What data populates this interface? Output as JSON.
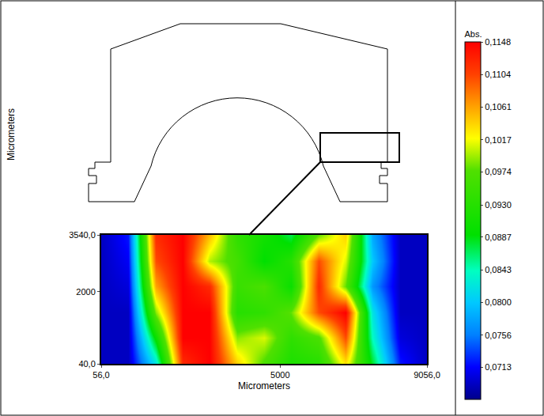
{
  "chart_data": {
    "type": "heatmap",
    "x_label": "Micrometers",
    "y_label": "Micrometers",
    "x": [
      56,
      806,
      1556,
      2306,
      3056,
      3806,
      4556,
      5306,
      6056,
      6806,
      7556,
      8306,
      9056
    ],
    "y": [
      40,
      740,
      1440,
      2140,
      2840,
      3540
    ],
    "z": [
      [
        0.069,
        0.069,
        0.082,
        0.112,
        0.1148,
        0.104,
        0.097,
        0.092,
        0.093,
        0.103,
        0.088,
        0.072,
        0.069
      ],
      [
        0.069,
        0.069,
        0.09,
        0.1148,
        0.1148,
        0.099,
        0.101,
        0.094,
        0.097,
        0.11,
        0.084,
        0.07,
        0.069
      ],
      [
        0.069,
        0.069,
        0.099,
        0.1148,
        0.1148,
        0.093,
        0.094,
        0.098,
        0.11,
        0.1148,
        0.082,
        0.069,
        0.069
      ],
      [
        0.069,
        0.07,
        0.106,
        0.1148,
        0.112,
        0.095,
        0.097,
        0.09,
        0.112,
        0.098,
        0.077,
        0.069,
        0.069
      ],
      [
        0.069,
        0.071,
        0.11,
        0.1148,
        0.1,
        0.096,
        0.089,
        0.093,
        0.11,
        0.101,
        0.08,
        0.069,
        0.069
      ],
      [
        0.069,
        0.072,
        0.112,
        0.1148,
        0.105,
        0.094,
        0.091,
        0.087,
        0.098,
        0.104,
        0.078,
        0.069,
        0.069
      ]
    ],
    "xlim": [
      56,
      9056
    ],
    "ylim": [
      40,
      3540
    ],
    "xticks": [
      {
        "value": 56,
        "label": "56,0"
      },
      5000,
      {
        "value": 9056,
        "label": "9056,0"
      }
    ],
    "yticks": [
      {
        "value": 40,
        "label": "40,0"
      },
      2000,
      {
        "value": 3540,
        "label": "3540,0"
      }
    ],
    "grid": false,
    "colorbar_title": "Abs.",
    "colorbar_range": [
      0.067,
      0.1148
    ],
    "colorbar_ticks": [
      {
        "value": 0.1148,
        "label": "0,1148"
      },
      {
        "value": 0.1104,
        "label": "0,1104"
      },
      {
        "value": 0.1061,
        "label": "0,1061"
      },
      {
        "value": 0.1017,
        "label": "0,1017"
      },
      {
        "value": 0.0974,
        "label": "0,0974"
      },
      {
        "value": 0.093,
        "label": "0,0930"
      },
      {
        "value": 0.0887,
        "label": "0,0887"
      },
      {
        "value": 0.0843,
        "label": "0,0843"
      },
      {
        "value": 0.08,
        "label": "0,0800"
      },
      {
        "value": 0.0756,
        "label": "0,0756"
      },
      {
        "value": 0.0713,
        "label": "0,0713"
      }
    ]
  }
}
